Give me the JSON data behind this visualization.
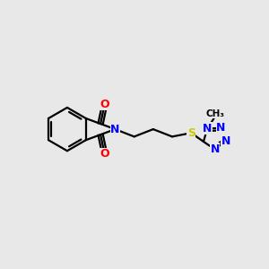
{
  "bg_color": "#e8e8e8",
  "bond_color": "#000000",
  "bond_width": 1.6,
  "atom_colors": {
    "N": "#0000ff",
    "O": "#ff0000",
    "S": "#cccc00",
    "C": "#000000"
  },
  "font_size_atoms": 9,
  "fig_width": 3.0,
  "fig_height": 3.0,
  "dpi": 100
}
